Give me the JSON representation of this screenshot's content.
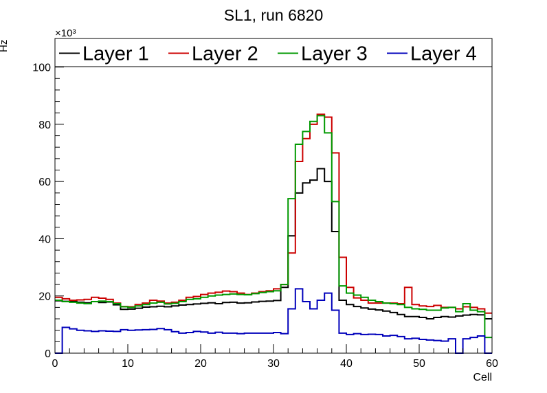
{
  "chart_data": {
    "type": "line",
    "title": "SL1, run 6820",
    "xlabel": "Cell",
    "ylabel": "Hz",
    "y_multiplier": "×10³",
    "xlim": [
      0,
      60
    ],
    "ylim": [
      0,
      110
    ],
    "x_ticks": [
      "0",
      "10",
      "20",
      "30",
      "40",
      "50",
      "60"
    ],
    "y_ticks": [
      "0",
      "20",
      "40",
      "60",
      "80",
      "100"
    ],
    "bin_edges_start": 0,
    "bin_width": 1,
    "legend_position": "top",
    "series": [
      {
        "name": "Layer 1",
        "color": "#000000",
        "values": [
          18.3,
          18.1,
          18,
          17.8,
          17.6,
          18,
          17.7,
          17.9,
          16.9,
          15.3,
          15.4,
          15.7,
          16.1,
          16.2,
          16.4,
          16.2,
          16.5,
          16.8,
          17,
          17.2,
          17.4,
          17.6,
          17.3,
          17.7,
          17.8,
          17.5,
          17.6,
          17.9,
          18.1,
          18.2,
          18.4,
          23,
          41,
          56,
          59.5,
          60.5,
          64.5,
          60,
          42.5,
          18.5,
          17,
          16.3,
          15.8,
          15.4,
          15.1,
          14.7,
          14.2,
          13.5,
          12.8,
          12.8,
          12.5,
          12,
          12.5,
          12.8,
          12.6,
          13,
          13.3,
          13.5,
          13.4,
          12
        ]
      },
      {
        "name": "Layer 2",
        "color": "#cc0000",
        "values": [
          19.5,
          19,
          18.5,
          18.6,
          18.8,
          19.5,
          19.2,
          18.8,
          17.5,
          16.3,
          16.2,
          17,
          17.5,
          18.5,
          18.2,
          17.5,
          17.8,
          18.5,
          19.5,
          19.8,
          20.5,
          21,
          21.3,
          21.7,
          21.5,
          21,
          20.5,
          21,
          21.5,
          21.8,
          22.5,
          24,
          35,
          67,
          75,
          80,
          83.5,
          82.5,
          70,
          33.5,
          23,
          19.3,
          18.5,
          17.5,
          17.5,
          17.5,
          17.5,
          17.3,
          23,
          17,
          16.5,
          16.3,
          16.7,
          16,
          16,
          15.5,
          16.2,
          16,
          15.5,
          14
        ]
      },
      {
        "name": "Layer 3",
        "color": "#009900",
        "values": [
          18.5,
          18,
          17.8,
          17.5,
          17.3,
          18,
          18.2,
          18,
          17.3,
          16.2,
          16,
          16.5,
          17,
          17.5,
          17.8,
          17.2,
          17.4,
          18,
          18.8,
          19,
          19.5,
          20,
          20.3,
          20.5,
          20.7,
          20.5,
          20.4,
          20.8,
          21.2,
          21.5,
          21.8,
          24,
          54,
          73,
          77.5,
          81,
          83,
          77,
          53,
          23.5,
          21,
          20.3,
          19.5,
          18.5,
          18,
          17.5,
          17.3,
          17,
          16,
          15.5,
          15.3,
          15,
          15,
          15.8,
          16,
          14.5,
          17.3,
          15,
          14.5,
          5.5
        ]
      },
      {
        "name": "Layer 4",
        "color": "#0000bb",
        "values": [
          0,
          9,
          8.5,
          8,
          7.8,
          7.6,
          7.8,
          7.7,
          7.6,
          8.2,
          8,
          8.1,
          8.2,
          8.3,
          8.6,
          8.2,
          7.5,
          7,
          7.2,
          7.6,
          7.4,
          7,
          7.3,
          7,
          7,
          6.8,
          7,
          7,
          7,
          7,
          7.2,
          6.8,
          15.5,
          22.5,
          18,
          15.5,
          18.5,
          21,
          15,
          7,
          6.5,
          6.8,
          6.5,
          6.6,
          6.5,
          6,
          6.2,
          5.8,
          5,
          5.2,
          4.8,
          4.6,
          4.4,
          4.2,
          5,
          0,
          5,
          5.5,
          6,
          0
        ]
      }
    ]
  }
}
